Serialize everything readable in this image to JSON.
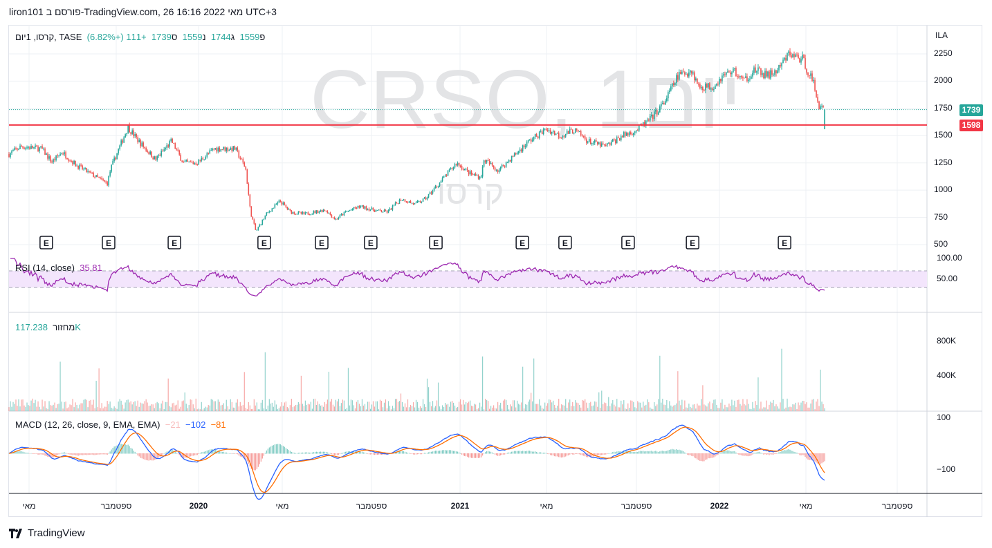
{
  "header": {
    "published": "liron101 פורסם ב-TradingView.com, 26 מאי 2022 16:16 UTC+3"
  },
  "legend": {
    "symbol": "קרסו, 1יום, TASE",
    "open_label": "פ",
    "open": "1559",
    "high_label": "ג",
    "high": "1744",
    "low_label": "נ",
    "low": "1559",
    "close_label": "ס",
    "close": "1739",
    "change": "+111 (+6.82%)"
  },
  "watermark": {
    "main": "CRSO, 1יום",
    "sub": "קרסו"
  },
  "rsi": {
    "label": "RSI (14, close)",
    "value": "35.81"
  },
  "volume": {
    "label": "מחזור",
    "value": "117.238K"
  },
  "macd": {
    "label": "MACD (12, 26, close, 9, EMA, EMA)",
    "hist": "−21",
    "macd": "−102",
    "signal": "−81"
  },
  "price_axis": {
    "currency": "ILA",
    "ticks": [
      "2250",
      "2000",
      "1750",
      "1500",
      "1250",
      "1000",
      "750",
      "500"
    ],
    "last_price": "1739",
    "line_price": "1598"
  },
  "rsi_axis": {
    "ticks": [
      "100.00",
      "50.00"
    ]
  },
  "volume_axis": {
    "ticks": [
      "800K",
      "400K"
    ]
  },
  "macd_axis": {
    "ticks": [
      "100",
      "−100"
    ]
  },
  "time_axis": {
    "labels": [
      "מאי",
      "ספטמבר",
      "2020",
      "מאי",
      "ספטמבר",
      "2021",
      "מאי",
      "ספטמבר",
      "2022",
      "מאי",
      "ספטמבר"
    ]
  },
  "brand": "TradingView",
  "colors": {
    "up": "#26a69a",
    "down": "#ef5350",
    "line": "#f23645",
    "rsi": "#9c27b0",
    "macd": "#2962ff",
    "signal": "#ff6d00"
  },
  "chart_data": {
    "type": "candlestick",
    "x_unit": "months since Apr 2019",
    "price_range": [
      450,
      2400
    ],
    "horizontal_line": 1598,
    "path": [
      [
        0,
        1330
      ],
      [
        0.54,
        1400
      ],
      [
        1.49,
        1380
      ],
      [
        1.97,
        1260
      ],
      [
        2.44,
        1350
      ],
      [
        3.08,
        1230
      ],
      [
        4.51,
        1060
      ],
      [
        4.67,
        1200
      ],
      [
        5.46,
        1580
      ],
      [
        5.94,
        1450
      ],
      [
        6.73,
        1280
      ],
      [
        7.46,
        1450
      ],
      [
        8.0,
        1250
      ],
      [
        8.63,
        1250
      ],
      [
        9.43,
        1380
      ],
      [
        10.38,
        1380
      ],
      [
        10.86,
        1200
      ],
      [
        11.08,
        800
      ],
      [
        11.33,
        620
      ],
      [
        11.81,
        780
      ],
      [
        12.44,
        900
      ],
      [
        12.92,
        800
      ],
      [
        13.56,
        780
      ],
      [
        14.51,
        820
      ],
      [
        14.98,
        730
      ],
      [
        15.46,
        800
      ],
      [
        16.1,
        850
      ],
      [
        16.89,
        810
      ],
      [
        17.37,
        800
      ],
      [
        18.0,
        920
      ],
      [
        18.63,
        870
      ],
      [
        19.11,
        920
      ],
      [
        19.9,
        1100
      ],
      [
        20.54,
        1250
      ],
      [
        21.17,
        1150
      ],
      [
        21.65,
        1120
      ],
      [
        21.81,
        1280
      ],
      [
        22.44,
        1180
      ],
      [
        23.08,
        1300
      ],
      [
        23.87,
        1450
      ],
      [
        24.67,
        1560
      ],
      [
        25.3,
        1500
      ],
      [
        25.94,
        1550
      ],
      [
        26.57,
        1450
      ],
      [
        27.37,
        1400
      ],
      [
        28.16,
        1500
      ],
      [
        28.79,
        1550
      ],
      [
        29.43,
        1650
      ],
      [
        30.06,
        1800
      ],
      [
        30.7,
        2050
      ],
      [
        31.33,
        2100
      ],
      [
        31.65,
        1950
      ],
      [
        32.29,
        1950
      ],
      [
        32.76,
        2050
      ],
      [
        33.24,
        2100
      ],
      [
        33.71,
        2000
      ],
      [
        34.19,
        2100
      ],
      [
        34.83,
        2050
      ],
      [
        35.3,
        2100
      ],
      [
        35.78,
        2250
      ],
      [
        36.41,
        2200
      ],
      [
        36.89,
        2000
      ],
      [
        37.21,
        1750
      ],
      [
        37.43,
        1739
      ]
    ],
    "earnings_events": [
      1.71,
      4.57,
      7.59,
      11.71,
      14.35,
      16.6,
      19.59,
      23.56,
      25.52,
      28.41,
      31.37,
      35.59
    ],
    "event_label": "E",
    "rsi_levels": [
      70,
      30
    ],
    "volume_range": [
      0,
      1100000
    ],
    "macd_range": [
      -170,
      130
    ]
  }
}
